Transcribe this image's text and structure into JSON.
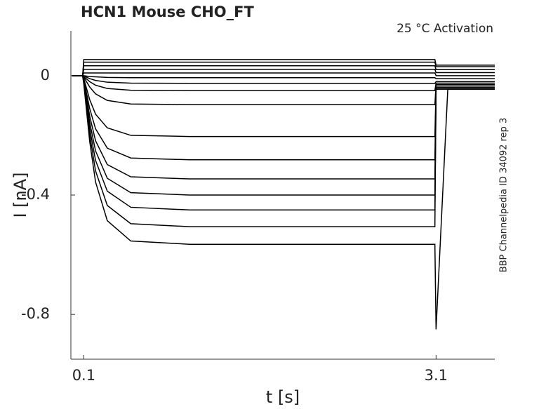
{
  "chart_data": {
    "type": "line",
    "title": "HCN1  Mouse  CHO_FT",
    "annotation": "25 °C  Activation",
    "side_note": "BBP Channelpedia ID 34092 rep 3",
    "xlabel": "t [s]",
    "ylabel": "I [nA]",
    "xlim": [
      -0.01,
      3.6
    ],
    "ylim": [
      -0.95,
      0.15
    ],
    "xticks": [
      0.1,
      3.1
    ],
    "yticks": [
      0,
      -0.4,
      -0.8
    ],
    "x": [
      0,
      0.09,
      0.1,
      0.15,
      0.2,
      0.3,
      0.5,
      1,
      2,
      3.09,
      3.1,
      3.2,
      3.6
    ],
    "series": [
      {
        "color": "#000000",
        "values": [
          0,
          0,
          0.054,
          0.054,
          0.054,
          0.054,
          0.054,
          0.054,
          0.054,
          0.054,
          0.035,
          0.035,
          0.035
        ]
      },
      {
        "color": "#000000",
        "values": [
          0,
          0,
          0.045,
          0.045,
          0.045,
          0.045,
          0.045,
          0.045,
          0.045,
          0.045,
          0.03,
          0.03,
          0.03
        ]
      },
      {
        "color": "#000000",
        "values": [
          0,
          0,
          0.033,
          0.033,
          0.033,
          0.033,
          0.033,
          0.033,
          0.033,
          0.033,
          0.02,
          0.02,
          0.02
        ]
      },
      {
        "color": "#000000",
        "values": [
          0,
          0,
          0.021,
          0.021,
          0.021,
          0.021,
          0.021,
          0.021,
          0.021,
          0.021,
          0.01,
          0.01,
          0.01
        ]
      },
      {
        "color": "#000000",
        "values": [
          0,
          0,
          0.009,
          0.009,
          0.009,
          0.009,
          0.009,
          0.009,
          0.009,
          0.009,
          0,
          0,
          0
        ]
      },
      {
        "color": "#000000",
        "values": [
          0,
          0,
          0,
          -0.003,
          -0.004,
          -0.006,
          -0.007,
          -0.007,
          -0.007,
          -0.007,
          -0.01,
          -0.01,
          -0.01
        ]
      },
      {
        "color": "#000000",
        "values": [
          0,
          0,
          -0.001,
          -0.01,
          -0.016,
          -0.022,
          -0.025,
          -0.026,
          -0.026,
          -0.026,
          -0.02,
          -0.02,
          -0.02
        ]
      },
      {
        "color": "#000000",
        "values": [
          0,
          0,
          -0.003,
          -0.02,
          -0.032,
          -0.043,
          -0.049,
          -0.05,
          -0.05,
          -0.05,
          -0.025,
          -0.025,
          -0.025
        ]
      },
      {
        "color": "#000000",
        "values": [
          0,
          0,
          -0.005,
          -0.038,
          -0.061,
          -0.083,
          -0.095,
          -0.097,
          -0.097,
          -0.097,
          -0.03,
          -0.03,
          -0.03
        ]
      },
      {
        "color": "#000000",
        "values": [
          0,
          0,
          -0.01,
          -0.08,
          -0.129,
          -0.175,
          -0.2,
          -0.204,
          -0.204,
          -0.204,
          -0.035,
          -0.035,
          -0.035
        ]
      },
      {
        "color": "#000000",
        "values": [
          0,
          0,
          -0.014,
          -0.11,
          -0.178,
          -0.243,
          -0.276,
          -0.282,
          -0.282,
          -0.282,
          -0.04,
          -0.04,
          -0.04
        ]
      },
      {
        "color": "#000000",
        "values": [
          0,
          0,
          -0.017,
          -0.135,
          -0.218,
          -0.298,
          -0.339,
          -0.346,
          -0.346,
          -0.346,
          -0.04,
          -0.04,
          -0.04
        ]
      },
      {
        "color": "#000000",
        "values": [
          0,
          0,
          -0.02,
          -0.156,
          -0.252,
          -0.344,
          -0.392,
          -0.4,
          -0.4,
          -0.4,
          -0.045,
          -0.045,
          -0.045
        ]
      },
      {
        "color": "#000000",
        "values": [
          0,
          0,
          -0.023,
          -0.176,
          -0.284,
          -0.387,
          -0.441,
          -0.45,
          -0.45,
          -0.45,
          -0.045,
          -0.045,
          -0.045
        ]
      },
      {
        "color": "#000000",
        "values": [
          0,
          0,
          -0.025,
          -0.197,
          -0.319,
          -0.435,
          -0.496,
          -0.506,
          -0.506,
          -0.506,
          -0.045,
          -0.045,
          -0.045
        ]
      },
      {
        "color": "#000000",
        "values": [
          0,
          0,
          -0.028,
          -0.22,
          -0.356,
          -0.486,
          -0.554,
          -0.565,
          -0.565,
          -0.565,
          -0.85,
          -0.045,
          -0.045
        ]
      }
    ]
  }
}
